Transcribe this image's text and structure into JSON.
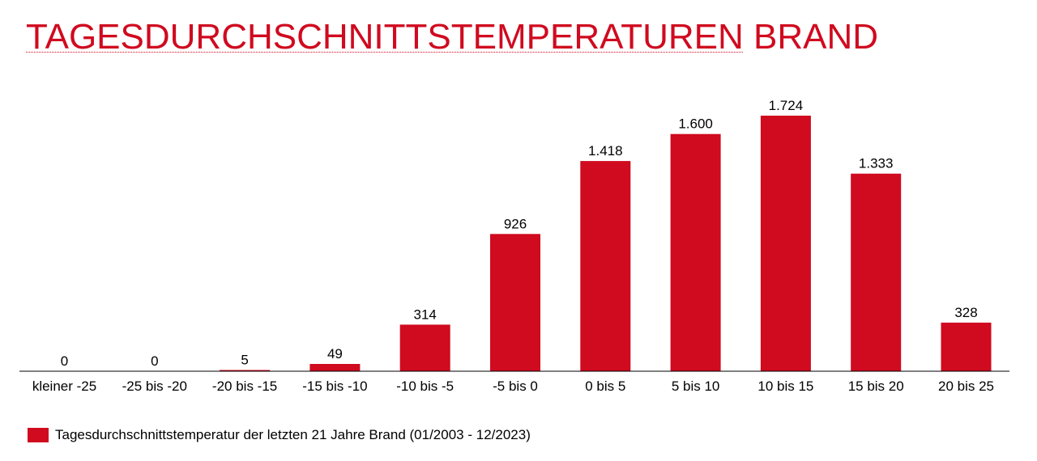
{
  "title": {
    "part1": "TAGESDURCHSCHNITTSTEMPERATUREN",
    "part2": " BRAND"
  },
  "colors": {
    "accent": "#d00a1f",
    "bar": "#d00a1f",
    "axis": "#000000"
  },
  "chart_data": {
    "type": "bar",
    "title": "TAGESDURCHSCHNITTSTEMPERATUREN BRAND",
    "xlabel": "",
    "ylabel": "",
    "categories": [
      "kleiner -25",
      "-25 bis -20",
      "-20 bis -15",
      "-15 bis -10",
      "-10 bis -5",
      "-5 bis 0",
      "0 bis 5",
      "5 bis 10",
      "10 bis 15",
      "15 bis 20",
      "20 bis 25"
    ],
    "values": [
      0,
      0,
      5,
      49,
      314,
      926,
      1418,
      1600,
      1724,
      1333,
      328
    ],
    "value_labels": [
      "0",
      "0",
      "5",
      "49",
      "314",
      "926",
      "1.418",
      "1.600",
      "1.724",
      "1.333",
      "328"
    ],
    "ylim": [
      0,
      1724
    ],
    "grid": false,
    "series": [
      {
        "name": "Tagesdurchschnittstemperatur der letzten 21 Jahre Brand (01/2003 - 12/2023)",
        "values": [
          0,
          0,
          5,
          49,
          314,
          926,
          1418,
          1600,
          1724,
          1333,
          328
        ]
      }
    ],
    "legend_position": "bottom-left"
  }
}
